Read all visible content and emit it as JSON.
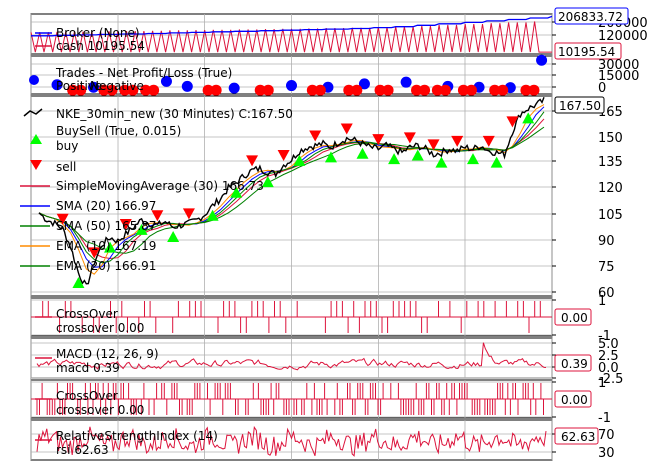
{
  "colors": {
    "broker_value": "#0000ff",
    "broker_cash": "#dc143c",
    "trade_pos": "#0000ff",
    "trade_neg": "#ff0000",
    "price": "#000000",
    "buy": "#00ff00",
    "sell": "#ff0000",
    "sma30": "#dc143c",
    "sma20": "#0000ff",
    "sma50": "#008000",
    "ema10": "#ff8c00",
    "ema20": "#008000",
    "indicator": "#dc143c",
    "grid": "#b0b0b0"
  },
  "chart_data": [
    {
      "type": "line",
      "panel": "broker",
      "legend": [
        "Broker (None)",
        "cash 10195.54"
      ],
      "series": [
        {
          "name": "value",
          "label_last": "206833.72",
          "values": [
            100000,
            103000,
            105000,
            108000,
            110000,
            113000,
            116000,
            119000,
            122000,
            125000,
            128000,
            131000,
            134000,
            137000,
            140000,
            145000,
            150000,
            158000,
            166000,
            174000,
            182000,
            190000,
            198000,
            206833.72
          ]
        },
        {
          "name": "cash",
          "label_last": "10195.54",
          "values": [
            10195.54,
            120000,
            10195.54,
            125000,
            10195.54,
            130000,
            10195.54,
            135000,
            10195.54,
            140000,
            10195.54,
            145000,
            10195.54,
            150000,
            10195.54,
            160000,
            10195.54,
            170000,
            10195.54,
            180000,
            10195.54,
            190000,
            10195.54,
            10195.54
          ]
        }
      ],
      "ytick_labels": [
        "200000",
        "120000"
      ],
      "ylim": [
        0,
        220000
      ]
    },
    {
      "type": "scatter",
      "panel": "trades",
      "legend": [
        "Trades - Net Profit/Loss (True)",
        "Positive",
        "Negative"
      ],
      "ytick_labels": [
        "30000",
        "15000",
        "0"
      ],
      "ylim": [
        -5000,
        40000
      ],
      "positive": [
        [
          0.05,
          6000
        ],
        [
          0.12,
          3000
        ],
        [
          0.26,
          10000
        ],
        [
          0.3,
          4000
        ],
        [
          0.39,
          2000
        ],
        [
          0.5,
          5000
        ],
        [
          0.57,
          3000
        ],
        [
          0.64,
          7000
        ],
        [
          0.72,
          9000
        ],
        [
          0.8,
          4000
        ],
        [
          0.86,
          3000
        ],
        [
          0.92,
          2500
        ],
        [
          0.98,
          35000
        ]
      ],
      "negative": [
        [
          0.08,
          -500
        ],
        [
          0.14,
          -500
        ],
        [
          0.18,
          -500
        ],
        [
          0.22,
          -500
        ],
        [
          0.34,
          -500
        ],
        [
          0.44,
          -500
        ],
        [
          0.54,
          -500
        ],
        [
          0.61,
          -500
        ],
        [
          0.67,
          -500
        ],
        [
          0.74,
          -500
        ],
        [
          0.78,
          -500
        ],
        [
          0.83,
          -500
        ],
        [
          0.89,
          -500
        ],
        [
          0.95,
          -500
        ]
      ]
    },
    {
      "type": "line",
      "panel": "price",
      "legend": [
        "NKE_30min_new (30 Minutes) C:167.50",
        "BuySell (True, 0.015)",
        "buy",
        "sell",
        "SimpleMovingAverage (30) 166.73",
        "SMA (20) 166.97",
        "SMA (50) 165.87",
        "EMA (10) 167.19",
        "EMA (20) 166.91"
      ],
      "last_label": "167.50",
      "ytick_labels": [
        "165",
        "150",
        "135",
        "120",
        "105",
        "90",
        "75",
        "60"
      ],
      "ylim": [
        57,
        170
      ],
      "close": [
        104,
        100,
        98,
        95,
        85,
        70,
        62,
        76,
        86,
        90,
        88,
        92,
        96,
        100,
        98,
        97,
        99,
        96,
        97,
        98,
        100,
        103,
        108,
        112,
        118,
        121,
        125,
        128,
        129,
        127,
        126,
        131,
        134,
        139,
        141,
        142,
        143,
        141,
        144,
        146,
        145,
        143,
        141,
        140,
        142,
        140,
        138,
        141,
        142,
        140,
        137,
        138,
        140,
        139,
        141,
        140,
        142,
        139,
        138,
        137,
        150,
        160,
        163,
        165,
        167.5
      ],
      "buy_idx": [
        5,
        9,
        13,
        17,
        22,
        25,
        29,
        33,
        37,
        41,
        45,
        48,
        51,
        55,
        58,
        62
      ],
      "sell_idx": [
        3,
        7,
        11,
        15,
        19,
        27,
        31,
        35,
        39,
        43,
        47,
        50,
        53,
        57,
        60
      ]
    },
    {
      "type": "line",
      "panel": "crossover1",
      "legend": [
        "CrossOver",
        "crossover 0.00"
      ],
      "last_label": "0.00",
      "ytick_labels": [
        "1",
        "-1"
      ],
      "ylim": [
        -1,
        1
      ]
    },
    {
      "type": "line",
      "panel": "macd",
      "legend": [
        "MACD (12, 26, 9)",
        "macd 0.39"
      ],
      "last_label": "0.39",
      "ytick_labels": [
        "5.0",
        "2.5",
        "0.0",
        "-2.5"
      ],
      "ylim": [
        -3,
        5.5
      ]
    },
    {
      "type": "line",
      "panel": "crossover2",
      "legend": [
        "CrossOver",
        "crossover 0.00"
      ],
      "last_label": "0.00",
      "ytick_labels": [
        "1",
        "-1"
      ],
      "ylim": [
        -1.2,
        1.2
      ]
    },
    {
      "type": "line",
      "panel": "rsi",
      "legend": [
        "RelativeStrengthIndex (14)",
        "rsi 62.63"
      ],
      "last_label": "62.63",
      "ytick_labels": [
        "70",
        "30"
      ],
      "ylim": [
        15,
        90
      ]
    }
  ]
}
